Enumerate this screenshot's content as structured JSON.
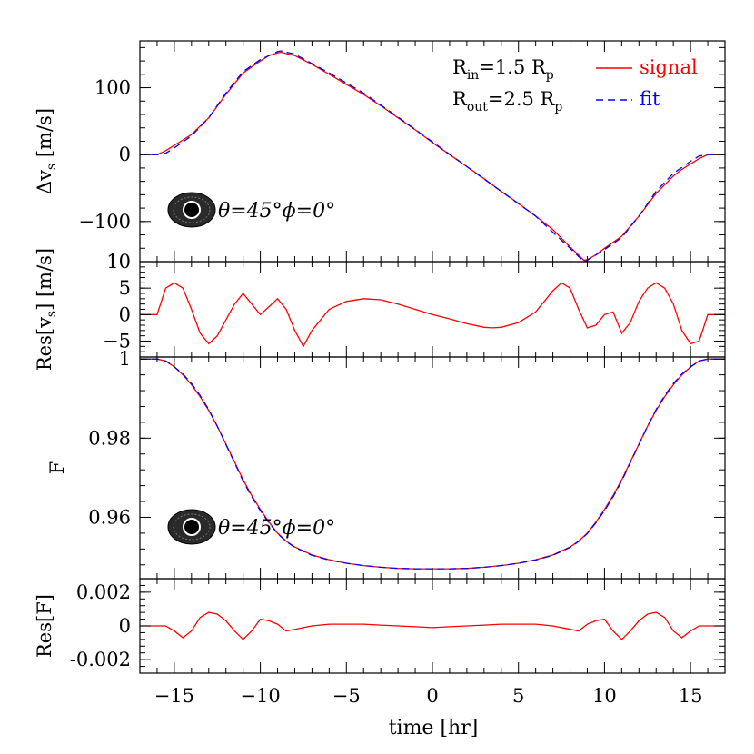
{
  "chart_data": [
    {
      "type": "line",
      "panel": "radial-velocity",
      "ylabel": "Δv",
      "ylabel_sub": "s",
      "ylabel_unit": " [m/s]",
      "xlim": [
        -17,
        17
      ],
      "ylim": [
        -160,
        170
      ],
      "yticks": [
        {
          "value": 100,
          "label": "100"
        },
        {
          "value": 0,
          "label": "0"
        },
        {
          "value": -100,
          "label": "−100"
        }
      ],
      "legend": {
        "placement": "top-right",
        "param1": {
          "main": "R",
          "sub": "in",
          "rest": "=1.5  R",
          "sub2": "p"
        },
        "param2": {
          "main": "R",
          "sub": "out",
          "rest": "=2.5  R",
          "sub2": "p"
        }
      },
      "annotation": "θ=45°ϕ=0°",
      "series": [
        {
          "name": "signal",
          "color": "#ff0000",
          "style": "solid",
          "x": [
            -17,
            -16,
            -15.5,
            -15,
            -14.5,
            -14,
            -13,
            -12,
            -11,
            -10,
            -9.5,
            -9,
            -8.8,
            -8,
            -7,
            -6,
            -5,
            -4,
            -3,
            -2,
            -1,
            0,
            1,
            2,
            3,
            4,
            5,
            6,
            7,
            8,
            8.8,
            9,
            9.5,
            10,
            11,
            12,
            13,
            14,
            14.5,
            15,
            15.5,
            16,
            17
          ],
          "y": [
            0,
            0,
            6,
            14,
            22,
            30,
            55,
            90,
            122,
            140,
            148,
            152,
            153,
            148,
            135,
            120,
            105,
            90,
            73,
            55,
            37,
            18,
            0,
            -18,
            -36,
            -55,
            -73,
            -92,
            -112,
            -138,
            -158,
            -157,
            -150,
            -140,
            -122,
            -92,
            -58,
            -32,
            -22,
            -14,
            -6,
            0,
            0
          ]
        },
        {
          "name": "fit",
          "color": "#0000ff",
          "style": "dashed",
          "x": [
            -17,
            -16,
            -15.5,
            -15,
            -14,
            -13,
            -12,
            -11,
            -10,
            -9,
            -8.8,
            -8,
            -6,
            -4,
            -2,
            0,
            2,
            4,
            6,
            8,
            8.8,
            9,
            10,
            11,
            12,
            13,
            14,
            15,
            15.5,
            16,
            17
          ],
          "y": [
            0,
            0,
            2,
            10,
            28,
            55,
            92,
            124,
            142,
            154,
            155,
            150,
            122,
            92,
            56,
            19,
            -18,
            -55,
            -92,
            -140,
            -160,
            -158,
            -142,
            -124,
            -92,
            -55,
            -28,
            -10,
            -2,
            0,
            0
          ]
        }
      ]
    },
    {
      "type": "line",
      "panel": "velocity-residual",
      "ylabel": "Res[v",
      "ylabel_sub": "s",
      "ylabel_unit": "] [m/s]",
      "xlim": [
        -17,
        17
      ],
      "ylim": [
        -8,
        10
      ],
      "yticks": [
        {
          "value": 10,
          "label": "10"
        },
        {
          "value": 5,
          "label": "5"
        },
        {
          "value": 0,
          "label": "0"
        },
        {
          "value": -5,
          "label": "−5"
        }
      ],
      "series": [
        {
          "name": "signal",
          "color": "#ff0000",
          "style": "solid",
          "x": [
            -17,
            -16,
            -15.5,
            -15,
            -14.5,
            -14,
            -13.5,
            -13,
            -12.5,
            -12,
            -11.5,
            -11,
            -10.5,
            -10,
            -9.5,
            -9,
            -8.5,
            -8,
            -7.5,
            -7,
            -6,
            -5,
            -4,
            -3,
            -2,
            -1,
            0,
            1,
            2,
            3,
            3.5,
            4,
            5,
            6,
            6.5,
            7,
            7.5,
            8,
            8.5,
            9,
            9.5,
            10,
            10.5,
            11,
            11.5,
            12,
            12.5,
            13,
            13.5,
            14,
            14.5,
            15,
            15.5,
            16,
            17
          ],
          "y": [
            0,
            0,
            5,
            6,
            5,
            1,
            -3.5,
            -5.5,
            -4,
            -1,
            2,
            4,
            2,
            0,
            1.5,
            3,
            1,
            -3,
            -6,
            -3,
            1,
            2.5,
            3,
            2.8,
            2,
            1,
            0,
            -0.8,
            -1.7,
            -2.4,
            -2.5,
            -2.4,
            -1.5,
            0.5,
            2.5,
            4.5,
            6,
            5,
            1,
            -2.5,
            -2,
            0,
            0.5,
            -3.5,
            -1.5,
            2.5,
            5,
            6,
            5,
            2,
            -3,
            -5.5,
            -5,
            0,
            0
          ]
        }
      ]
    },
    {
      "type": "line",
      "panel": "flux",
      "ylabel": "F",
      "xlim": [
        -17,
        17
      ],
      "ylim": [
        0.9445,
        1.0005
      ],
      "yticks": [
        {
          "value": 1,
          "label": "1"
        },
        {
          "value": 0.98,
          "label": "0.98"
        },
        {
          "value": 0.96,
          "label": "0.96"
        }
      ],
      "annotation": "θ=45°ϕ=0°",
      "series": [
        {
          "name": "signal",
          "color": "#ff0000",
          "style": "solid",
          "x": [
            -17,
            -16,
            -15.5,
            -15,
            -14.5,
            -14,
            -13.5,
            -13,
            -12.5,
            -12,
            -11.5,
            -11,
            -10.5,
            -10,
            -9.5,
            -9,
            -8.5,
            -8,
            -7,
            -6,
            -5,
            -4,
            -3,
            -2,
            -1,
            0,
            1,
            2,
            3,
            4,
            5,
            6,
            7,
            8,
            8.5,
            9,
            9.5,
            10,
            10.5,
            11,
            11.5,
            12,
            12.5,
            13,
            13.5,
            14,
            14.5,
            15,
            15.5,
            16,
            17
          ],
          "y": [
            1,
            1,
            0.9995,
            0.998,
            0.996,
            0.9935,
            0.9905,
            0.987,
            0.983,
            0.9785,
            0.974,
            0.9695,
            0.9655,
            0.962,
            0.9588,
            0.956,
            0.954,
            0.9525,
            0.9505,
            0.9493,
            0.9484,
            0.9478,
            0.9474,
            0.9471,
            0.947,
            0.947,
            0.947,
            0.9471,
            0.9474,
            0.9478,
            0.9484,
            0.9493,
            0.9505,
            0.9525,
            0.954,
            0.956,
            0.9588,
            0.962,
            0.9655,
            0.9695,
            0.974,
            0.9785,
            0.983,
            0.987,
            0.9905,
            0.9935,
            0.996,
            0.998,
            0.9995,
            1,
            1
          ]
        },
        {
          "name": "fit",
          "color": "#0000ff",
          "style": "dashed",
          "x": [
            -17,
            -16,
            -15.5,
            -15,
            -14.5,
            -14,
            -13.5,
            -13,
            -12.5,
            -12,
            -11.5,
            -11,
            -10.5,
            -10,
            -9.5,
            -9,
            -8.5,
            -8,
            -7,
            -6,
            -5,
            -4,
            -3,
            -2,
            -1,
            0,
            1,
            2,
            3,
            4,
            5,
            6,
            7,
            8,
            8.5,
            9,
            9.5,
            10,
            10.5,
            11,
            11.5,
            12,
            12.5,
            13,
            13.5,
            14,
            14.5,
            15,
            15.5,
            16,
            17
          ],
          "y": [
            1,
            1,
            0.9995,
            0.998,
            0.9962,
            0.9938,
            0.9908,
            0.9872,
            0.983,
            0.9784,
            0.9738,
            0.9692,
            0.9652,
            0.9617,
            0.9586,
            0.9559,
            0.9539,
            0.9524,
            0.9504,
            0.9492,
            0.9484,
            0.9478,
            0.9474,
            0.9471,
            0.947,
            0.947,
            0.947,
            0.9471,
            0.9474,
            0.9478,
            0.9484,
            0.9492,
            0.9504,
            0.9524,
            0.9539,
            0.9559,
            0.9586,
            0.9617,
            0.9652,
            0.9692,
            0.9738,
            0.9784,
            0.983,
            0.9872,
            0.9908,
            0.9938,
            0.9962,
            0.998,
            0.9995,
            1,
            1
          ]
        }
      ]
    },
    {
      "type": "line",
      "panel": "flux-residual",
      "ylabel": "Res[F]",
      "xlabel": "time [hr]",
      "xlim": [
        -17,
        17
      ],
      "ylim": [
        -0.0028,
        0.0028
      ],
      "yticks": [
        {
          "value": 0.002,
          "label": "0.002"
        },
        {
          "value": 0,
          "label": "0"
        },
        {
          "value": -0.002,
          "label": "-0.002"
        }
      ],
      "xticks": [
        {
          "value": -15,
          "label": "−15"
        },
        {
          "value": -10,
          "label": "−10"
        },
        {
          "value": -5,
          "label": "−5"
        },
        {
          "value": 0,
          "label": "0"
        },
        {
          "value": 5,
          "label": "5"
        },
        {
          "value": 10,
          "label": "10"
        },
        {
          "value": 15,
          "label": "15"
        }
      ],
      "series": [
        {
          "name": "signal",
          "color": "#ff0000",
          "style": "solid",
          "x": [
            -17,
            -16,
            -15.5,
            -15,
            -14.5,
            -14,
            -13.5,
            -13,
            -12.5,
            -12,
            -11.5,
            -11,
            -10.5,
            -10,
            -9.5,
            -9,
            -8.5,
            -8,
            -7,
            -6,
            -5,
            -4,
            -3,
            -2,
            -1,
            0,
            1,
            2,
            3,
            4,
            5,
            6,
            7,
            8,
            8.5,
            9,
            9.5,
            10,
            10.5,
            11,
            11.5,
            12,
            12.5,
            13,
            13.5,
            14,
            14.5,
            15,
            15.5,
            16,
            17
          ],
          "y": [
            0,
            0,
            0,
            -0.0003,
            -0.0007,
            -0.0003,
            0.0005,
            0.0008,
            0.0007,
            0.0003,
            -0.0003,
            -0.0008,
            -0.0003,
            0.0004,
            0.0003,
            0.0001,
            -0.0003,
            -0.0002,
            0,
            0.0001,
            0.0001,
            0.0001,
            5e-05,
            0,
            -5e-05,
            -0.0001,
            -5e-05,
            0,
            5e-05,
            0.0001,
            0.0001,
            0.0001,
            0,
            -0.0002,
            -0.0003,
            0.0001,
            0.0003,
            0.0004,
            -0.0003,
            -0.0008,
            -0.0003,
            0.0003,
            0.0007,
            0.0008,
            0.0005,
            -0.0003,
            -0.0007,
            -0.0003,
            0,
            0,
            0
          ]
        }
      ]
    }
  ]
}
